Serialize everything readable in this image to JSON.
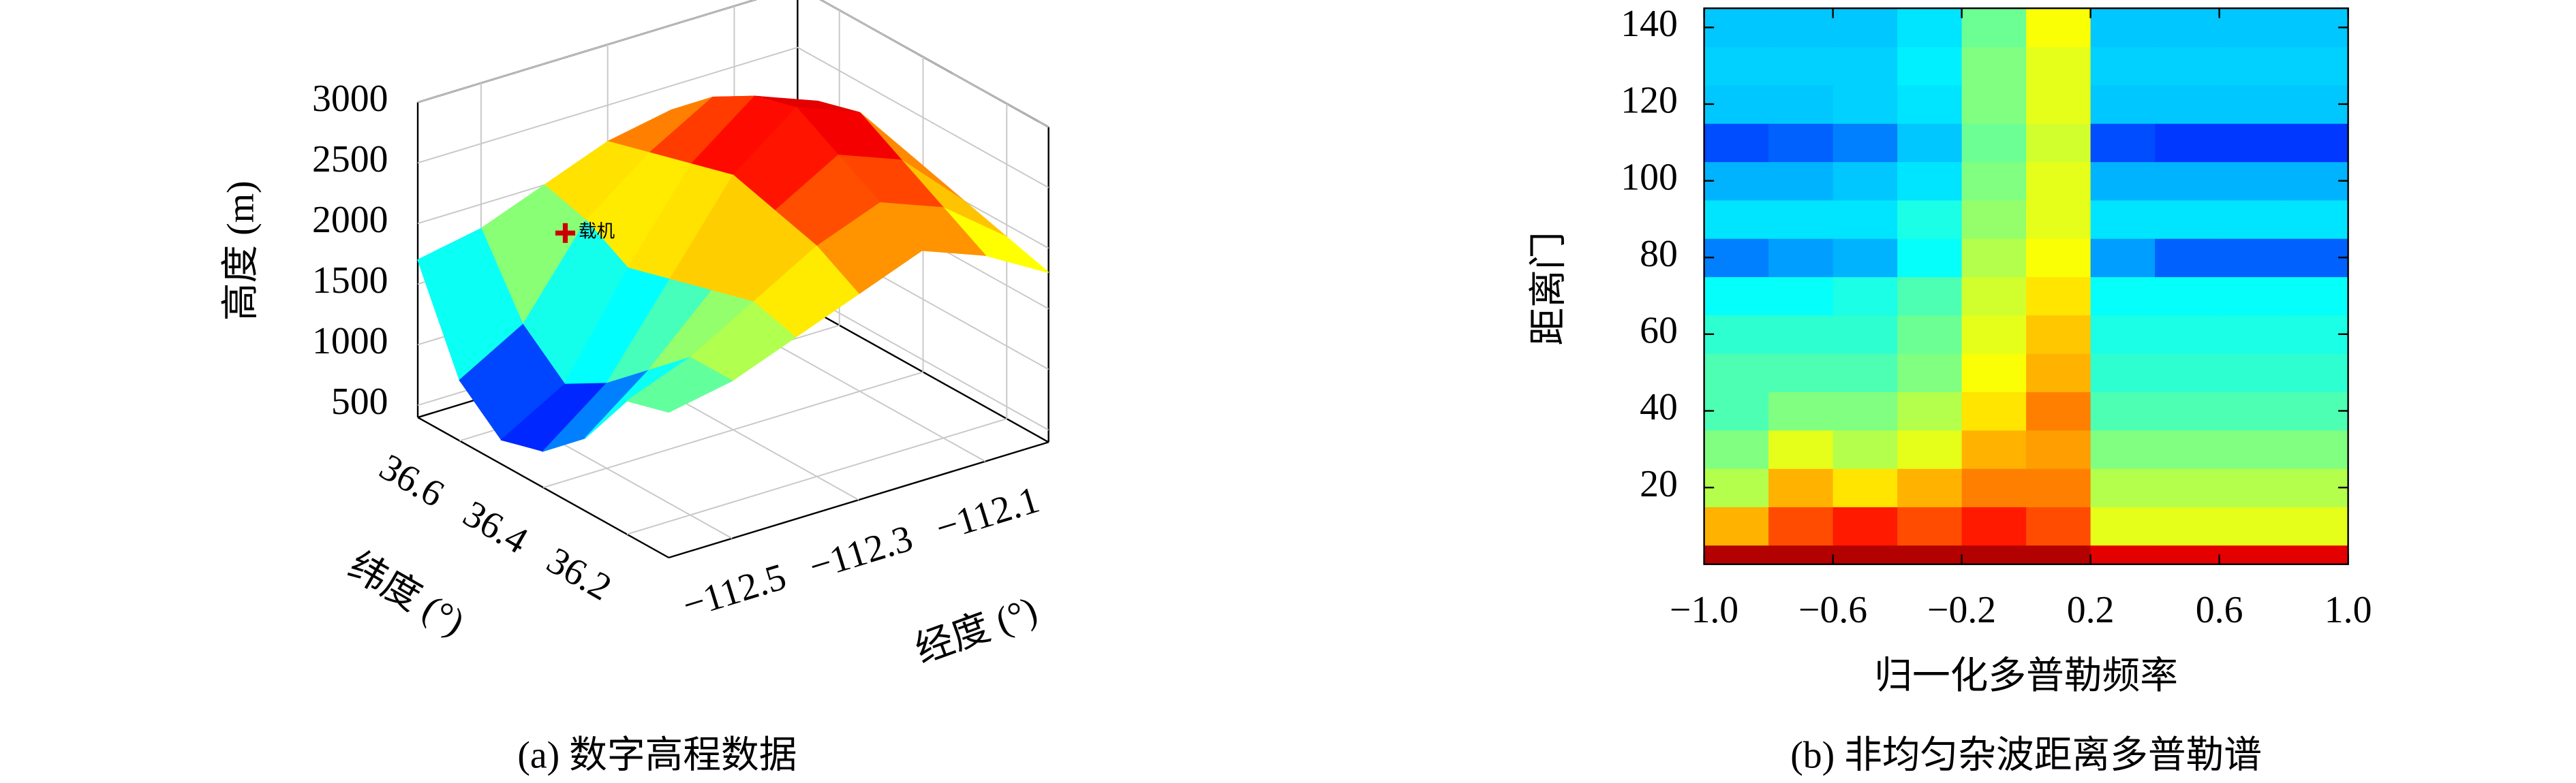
{
  "chart_data": [
    {
      "type": "surface",
      "caption": "(a) 数字高程数据",
      "xlabel": "经度 (°)",
      "ylabel": "纬度 (°)",
      "zlabel": "高度 (m)",
      "x": [
        -112.6,
        -112.5,
        -112.4,
        -112.3,
        -112.2,
        -112.1,
        -112.0
      ],
      "y": [
        36.1,
        36.2,
        36.3,
        36.4,
        36.5,
        36.6,
        36.7
      ],
      "z": [
        [
          1600,
          1700,
          1900,
          2100,
          2300,
          2100,
          1800
        ],
        [
          1500,
          1700,
          2000,
          2300,
          2500,
          2300,
          1900
        ],
        [
          1000,
          1400,
          1900,
          2400,
          2700,
          2500,
          2000
        ],
        [
          700,
          1100,
          1800,
          2500,
          2900,
          2700,
          2100
        ],
        [
          600,
          900,
          1700,
          2400,
          2800,
          2600,
          2000
        ],
        [
          900,
          1200,
          1900,
          2300,
          2600,
          2400,
          1900
        ],
        [
          1700,
          1800,
          2000,
          2200,
          2300,
          2100,
          1800
        ]
      ],
      "xlim": [
        -112.6,
        -112.0
      ],
      "ylim": [
        36.1,
        36.7
      ],
      "zlim": [
        400,
        3000
      ],
      "xticks": [
        {
          "value": -112.5,
          "label": "−112.5"
        },
        {
          "value": -112.3,
          "label": "−112.3"
        },
        {
          "value": -112.1,
          "label": "−112.1"
        }
      ],
      "yticks": [
        36.2,
        36.4,
        36.6
      ],
      "zticks": [
        500,
        1000,
        1500,
        2000,
        2500,
        3000
      ],
      "grid": true,
      "colormap": "jet",
      "annotation": {
        "text": "载机",
        "x": -112.4,
        "y": 36.65,
        "z": 1700,
        "color": "#cc0000"
      }
    },
    {
      "type": "heatmap",
      "caption": "(b) 非均匀杂波距离多普勒谱",
      "xlabel": "归一化多普勒频率",
      "ylabel": "距离门",
      "xbins": [
        -1,
        -0.8,
        -0.6,
        -0.4,
        -0.2,
        0,
        0.2,
        0.4,
        0.6,
        0.8,
        1
      ],
      "ybins": [
        0,
        5,
        15,
        25,
        35,
        45,
        55,
        65,
        75,
        85,
        95,
        105,
        115,
        125,
        135,
        145
      ],
      "values": [
        [
          0.95,
          0.95,
          0.95,
          0.95,
          0.95,
          0.95,
          0.9,
          0.9,
          0.9,
          0.9
        ],
        [
          0.7,
          0.8,
          0.85,
          0.8,
          0.85,
          0.8,
          0.6,
          0.6,
          0.6,
          0.6
        ],
        [
          0.55,
          0.7,
          0.65,
          0.7,
          0.75,
          0.75,
          0.55,
          0.55,
          0.55,
          0.55
        ],
        [
          0.5,
          0.6,
          0.55,
          0.6,
          0.7,
          0.72,
          0.5,
          0.5,
          0.5,
          0.5
        ],
        [
          0.45,
          0.5,
          0.5,
          0.55,
          0.65,
          0.75,
          0.45,
          0.45,
          0.45,
          0.45
        ],
        [
          0.45,
          0.45,
          0.45,
          0.5,
          0.62,
          0.7,
          0.42,
          0.42,
          0.42,
          0.42
        ],
        [
          0.42,
          0.42,
          0.42,
          0.48,
          0.6,
          0.68,
          0.4,
          0.4,
          0.4,
          0.4
        ],
        [
          0.38,
          0.38,
          0.4,
          0.45,
          0.58,
          0.65,
          0.38,
          0.38,
          0.38,
          0.38
        ],
        [
          0.25,
          0.28,
          0.3,
          0.38,
          0.55,
          0.62,
          0.28,
          0.22,
          0.22,
          0.22
        ],
        [
          0.35,
          0.35,
          0.35,
          0.4,
          0.52,
          0.6,
          0.35,
          0.35,
          0.35,
          0.35
        ],
        [
          0.3,
          0.3,
          0.32,
          0.35,
          0.5,
          0.6,
          0.3,
          0.3,
          0.3,
          0.3
        ],
        [
          0.2,
          0.22,
          0.25,
          0.32,
          0.48,
          0.58,
          0.2,
          0.18,
          0.18,
          0.18
        ],
        [
          0.32,
          0.32,
          0.33,
          0.35,
          0.5,
          0.6,
          0.32,
          0.32,
          0.32,
          0.32
        ],
        [
          0.33,
          0.33,
          0.33,
          0.36,
          0.5,
          0.6,
          0.33,
          0.33,
          0.33,
          0.33
        ],
        [
          0.32,
          0.32,
          0.32,
          0.35,
          0.48,
          0.62,
          0.32,
          0.32,
          0.32,
          0.32
        ]
      ],
      "xlim": [
        -1,
        1
      ],
      "ylim": [
        0,
        145
      ],
      "xticks": [
        {
          "value": -1,
          "label": "−1.0"
        },
        {
          "value": -0.6,
          "label": "−0.6"
        },
        {
          "value": -0.2,
          "label": "−0.2"
        },
        {
          "value": 0.2,
          "label": "0.2"
        },
        {
          "value": 0.6,
          "label": "0.6"
        },
        {
          "value": 1,
          "label": "1.0"
        }
      ],
      "yticks": [
        20,
        40,
        60,
        80,
        100,
        120,
        140
      ],
      "clim": [
        0,
        1
      ],
      "colormap": "jet"
    }
  ]
}
